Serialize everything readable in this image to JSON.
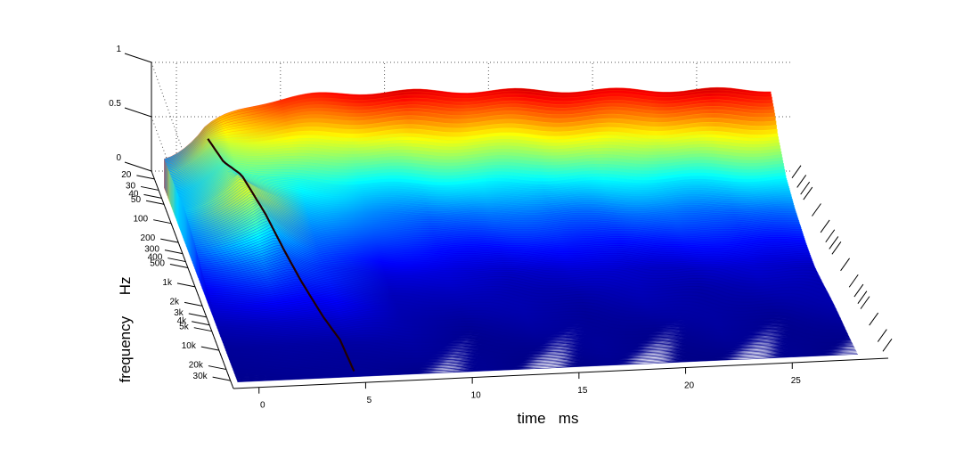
{
  "chart_data": {
    "type": "surface",
    "title": "",
    "xlabel": "time   ms",
    "ylabel": "frequency     Hz",
    "zlabel": "",
    "x_ticks": [
      0,
      5,
      10,
      15,
      20,
      25
    ],
    "x_tick_labels": [
      "0",
      "5",
      "10",
      "15",
      "20",
      "25"
    ],
    "xlim": [
      -1.2,
      29.5
    ],
    "y_scale": "log",
    "y_ticks": [
      20,
      30,
      40,
      50,
      100,
      200,
      300,
      400,
      500,
      1000,
      2000,
      3000,
      4000,
      5000,
      10000,
      20000,
      30000
    ],
    "y_tick_labels": [
      "20",
      "30",
      "40",
      "50",
      "100",
      "200",
      "300",
      "400",
      "500",
      "1k",
      "2k",
      "3k",
      "4k",
      "5k",
      "10k",
      "20k",
      "30k"
    ],
    "ylim": [
      15,
      40000
    ],
    "z_ticks": [
      0,
      0.5,
      1
    ],
    "z_tick_labels": [
      "0",
      "0.5",
      "1"
    ],
    "zlim": [
      0,
      1
    ],
    "grid": true,
    "colormap": "jet",
    "colormap_stops": [
      "#00008f",
      "#0000ff",
      "#00ffff",
      "#ffff00",
      "#ff0000",
      "#800000"
    ],
    "edge_color": "#000000",
    "wavefront_time_ms": {
      "20": 0.8,
      "100": 1.3,
      "1000": 3.0,
      "10000": 4.5,
      "30000": 4.6
    },
    "peak_level_at_wavefront": {
      "20": 0.52,
      "100": 0.57,
      "200": 0.63,
      "500": 0.5,
      "1000": 0.34,
      "2000": 0.22,
      "5000": 0.1,
      "10000": 0.05,
      "30000": 0.03
    },
    "late_level_at_25ms": {
      "20": 0.98,
      "30": 0.88,
      "40": 0.76,
      "50": 0.62,
      "100": 0.35,
      "200": 0.22,
      "500": 0.12,
      "1000": 0.06,
      "2000": 0.04,
      "10000": 0.02,
      "30000": 0.01
    }
  }
}
